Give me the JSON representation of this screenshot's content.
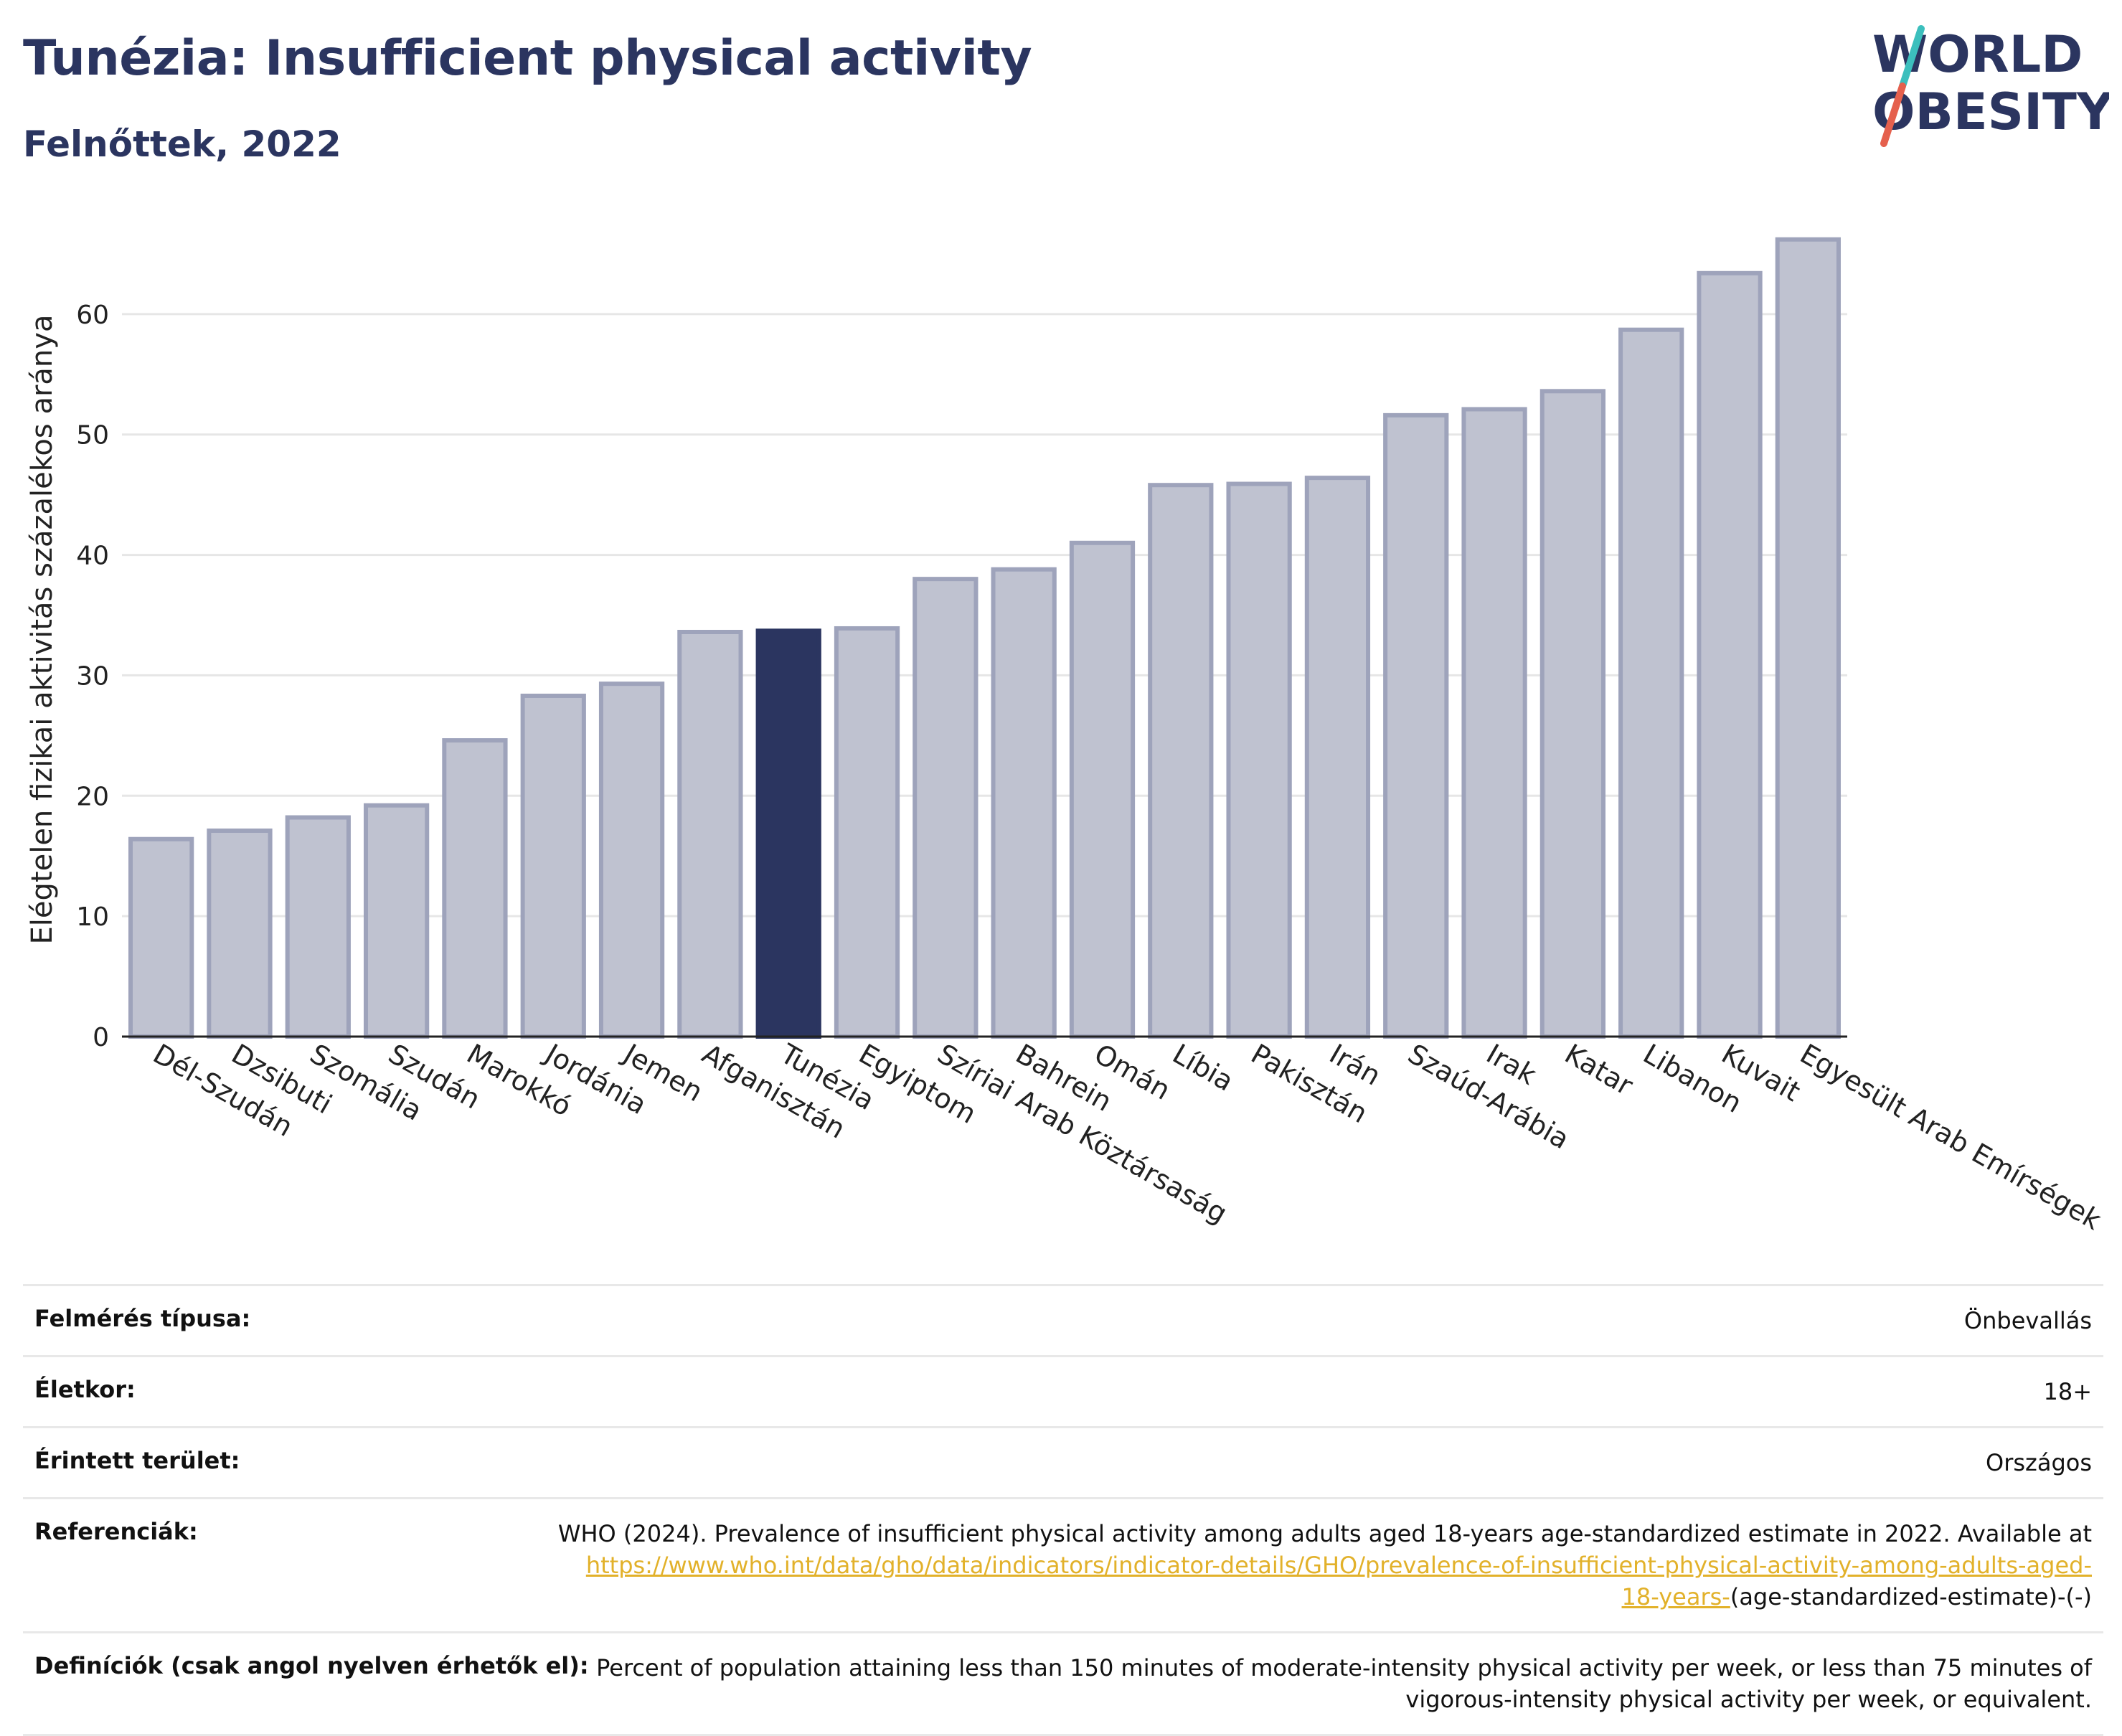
{
  "header": {
    "title": "Tunézia: Insufficient physical activity",
    "subtitle": "Felnőttek, 2022"
  },
  "logo": {
    "line1": "WORLD",
    "line2": "OBESITY",
    "accent_colors": [
      "#3cbfbd",
      "#e5604d"
    ]
  },
  "colors": {
    "highlight": "#2b3560",
    "bar": "#bfc2d0",
    "bar_edge": "#9ea3bb",
    "grid": "#e6e6e6"
  },
  "chart_data": {
    "type": "bar",
    "title": "Tunézia: Insufficient physical activity",
    "subtitle": "Felnőttek, 2022",
    "ylabel": "Elégtelen fizikai aktivitás százalékos aránya",
    "xlabel": "",
    "ylim": [
      0,
      70
    ],
    "yticks": [
      0,
      10,
      20,
      30,
      40,
      50,
      60
    ],
    "grid": true,
    "highlight_category": "Tunézia",
    "categories": [
      "Dél-Szudán",
      "Dzsibuti",
      "Szomália",
      "Szudán",
      "Marokkó",
      "Jordánia",
      "Jemen",
      "Afganisztán",
      "Tunézia",
      "Egyiptom",
      "Szíriai Arab Köztársaság",
      "Bahrein",
      "Omán",
      "Líbia",
      "Pakisztán",
      "Irán",
      "Szaúd-Arábia",
      "Irak",
      "Katar",
      "Libanon",
      "Kuvait",
      "Egyesült Arab Emírségek"
    ],
    "values": [
      16.4,
      17.1,
      18.2,
      19.2,
      24.6,
      28.3,
      29.3,
      33.6,
      33.7,
      33.9,
      38.0,
      38.8,
      41.0,
      45.8,
      45.9,
      46.4,
      51.6,
      52.1,
      53.6,
      58.7,
      63.4,
      66.2
    ]
  },
  "info_table": [
    {
      "label": "Felmérés típusa:",
      "value": "Önbevallás"
    },
    {
      "label": "Életkor:",
      "value": "18+"
    },
    {
      "label": "Érintett terület:",
      "value": "Országos"
    },
    {
      "label": "Referenciák:",
      "value": "WHO (2024). Prevalence of insufficient physical activity among adults aged 18-years age-standardized estimate in 2022. Available at",
      "link": "https://www.who.int/data/gho/data/indicators/indicator-details/GHO/prevalence-of-insufficient-physical-activity-among-adults-aged-18-years-",
      "suffix": "(age-standardized-estimate)-(-)"
    },
    {
      "label": "Definíciók (csak angol nyelven érhetők el):",
      "value": "Percent of population attaining less than 150 minutes of moderate-intensity physical activity per week, or less than 75 minutes of vigorous-intensity physical activity per week, or equivalent."
    }
  ]
}
